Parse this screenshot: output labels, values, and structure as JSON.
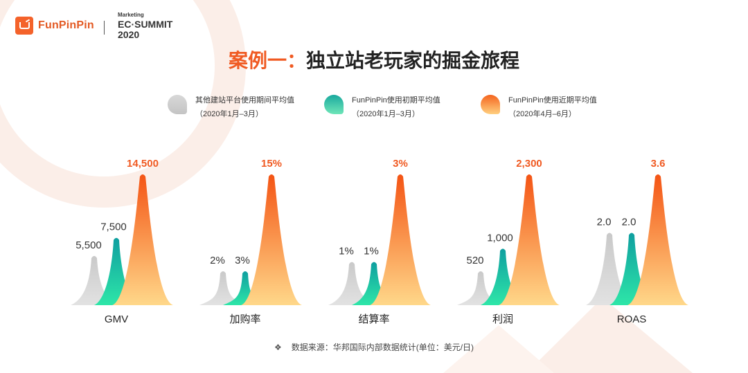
{
  "brand": {
    "name": "FunPinPin",
    "event_line1": "Marketing",
    "event_line2": "EC·SUMMIT",
    "event_line3": "2020"
  },
  "title": {
    "highlight": "案例一：",
    "rest": "独立站老玩家的掘金旅程"
  },
  "colors": {
    "accent": "#f05a22",
    "gray": "#cfcfcf",
    "teal": "#16b5a6",
    "orange": "#f4641e"
  },
  "legend": [
    {
      "label": "其他建站平台使用期间平均值",
      "sub": "（2020年1月–3月）"
    },
    {
      "label": "FunPinPin使用初期平均值",
      "sub": "（2020年1月–3月）"
    },
    {
      "label": "FunPinPin使用近期平均值",
      "sub": "（2020年4月–6月）"
    }
  ],
  "chart_data": {
    "type": "area",
    "groups": [
      {
        "category": "GMV",
        "labels": [
          "5,500",
          "7,500",
          "14,500"
        ],
        "values": [
          5500,
          7500,
          14500
        ]
      },
      {
        "category": "加购率",
        "labels": [
          "2%",
          "3%",
          "15%"
        ],
        "values": [
          2,
          3,
          15
        ]
      },
      {
        "category": "结算率",
        "labels": [
          "1%",
          "1%",
          "3%"
        ],
        "values": [
          1,
          1,
          3
        ]
      },
      {
        "category": "利润",
        "labels": [
          "520",
          "1,000",
          "2,300"
        ],
        "values": [
          520,
          1000,
          2300
        ]
      },
      {
        "category": "ROAS",
        "labels": [
          "2.0",
          "2.0",
          "3.6"
        ],
        "values": [
          2.0,
          2.0,
          3.6
        ]
      }
    ]
  },
  "footer": {
    "bullet": "❖",
    "text": "数据来源：华邦国际内部数据统计(单位：美元/日)"
  }
}
